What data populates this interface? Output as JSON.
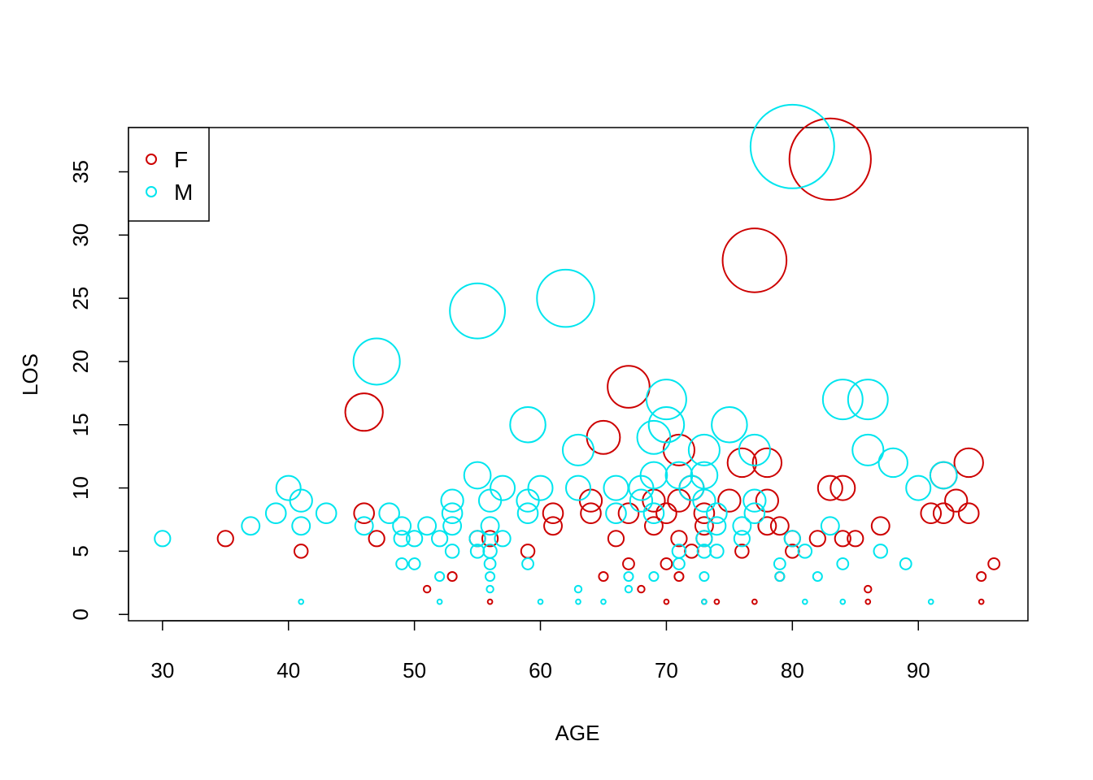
{
  "chart_data": {
    "type": "scatter",
    "title": "",
    "xlabel": "AGE",
    "ylabel": "LOS",
    "xlim": [
      27.3,
      98.7
    ],
    "ylim": [
      -0.5,
      38.5
    ],
    "x_ticks": [
      30,
      40,
      50,
      60,
      70,
      80,
      90
    ],
    "y_ticks": [
      0,
      5,
      10,
      15,
      20,
      25,
      30,
      35
    ],
    "grid": false,
    "legend_position": "top-left",
    "marker": "open-circle",
    "size_encoding": "bubble radius grows with LOS",
    "series": [
      {
        "name": "F",
        "color": "#CD0000",
        "points": [
          [
            35,
            6
          ],
          [
            41,
            5
          ],
          [
            46,
            16
          ],
          [
            46,
            8
          ],
          [
            47,
            6
          ],
          [
            51,
            2
          ],
          [
            53,
            3
          ],
          [
            55,
            6
          ],
          [
            56,
            6
          ],
          [
            56,
            1
          ],
          [
            59,
            5
          ],
          [
            61,
            7
          ],
          [
            61,
            8
          ],
          [
            64,
            8
          ],
          [
            64,
            9
          ],
          [
            65,
            3
          ],
          [
            65,
            14
          ],
          [
            66,
            6
          ],
          [
            67,
            8
          ],
          [
            67,
            4
          ],
          [
            67,
            18
          ],
          [
            68,
            2
          ],
          [
            69,
            7
          ],
          [
            69,
            9
          ],
          [
            70,
            8
          ],
          [
            70,
            4
          ],
          [
            70,
            1
          ],
          [
            71,
            9
          ],
          [
            71,
            13
          ],
          [
            71,
            6
          ],
          [
            71,
            3
          ],
          [
            72,
            10
          ],
          [
            72,
            5
          ],
          [
            73,
            8
          ],
          [
            73,
            7
          ],
          [
            73,
            6
          ],
          [
            73,
            1
          ],
          [
            74,
            1
          ],
          [
            75,
            9
          ],
          [
            76,
            12
          ],
          [
            76,
            5
          ],
          [
            77,
            28
          ],
          [
            77,
            1
          ],
          [
            78,
            12
          ],
          [
            78,
            9
          ],
          [
            78,
            7
          ],
          [
            79,
            7
          ],
          [
            79,
            3
          ],
          [
            80,
            6
          ],
          [
            80,
            5
          ],
          [
            82,
            6
          ],
          [
            83,
            10
          ],
          [
            83,
            36
          ],
          [
            84,
            10
          ],
          [
            84,
            6
          ],
          [
            85,
            6
          ],
          [
            86,
            2
          ],
          [
            86,
            1
          ],
          [
            87,
            7
          ],
          [
            91,
            8
          ],
          [
            92,
            8
          ],
          [
            92,
            11
          ],
          [
            93,
            9
          ],
          [
            94,
            12
          ],
          [
            94,
            8
          ],
          [
            95,
            3
          ],
          [
            95,
            1
          ],
          [
            96,
            4
          ]
        ]
      },
      {
        "name": "M",
        "color": "#00E5EE",
        "points": [
          [
            30,
            6
          ],
          [
            37,
            7
          ],
          [
            39,
            8
          ],
          [
            40,
            10
          ],
          [
            41,
            9
          ],
          [
            41,
            7
          ],
          [
            41,
            1
          ],
          [
            43,
            8
          ],
          [
            46,
            7
          ],
          [
            47,
            20
          ],
          [
            48,
            8
          ],
          [
            49,
            7
          ],
          [
            49,
            6
          ],
          [
            49,
            4
          ],
          [
            50,
            6
          ],
          [
            50,
            4
          ],
          [
            51,
            7
          ],
          [
            52,
            6
          ],
          [
            52,
            3
          ],
          [
            52,
            1
          ],
          [
            53,
            9
          ],
          [
            53,
            8
          ],
          [
            53,
            7
          ],
          [
            53,
            5
          ],
          [
            55,
            24
          ],
          [
            55,
            11
          ],
          [
            55,
            6
          ],
          [
            55,
            5
          ],
          [
            56,
            9
          ],
          [
            56,
            7
          ],
          [
            56,
            5
          ],
          [
            56,
            4
          ],
          [
            56,
            3
          ],
          [
            56,
            2
          ],
          [
            57,
            10
          ],
          [
            57,
            6
          ],
          [
            59,
            15
          ],
          [
            59,
            9
          ],
          [
            59,
            8
          ],
          [
            59,
            4
          ],
          [
            60,
            10
          ],
          [
            60,
            1
          ],
          [
            62,
            25
          ],
          [
            63,
            13
          ],
          [
            63,
            10
          ],
          [
            63,
            2
          ],
          [
            63,
            1
          ],
          [
            65,
            1
          ],
          [
            66,
            10
          ],
          [
            66,
            8
          ],
          [
            67,
            3
          ],
          [
            67,
            2
          ],
          [
            68,
            9
          ],
          [
            68,
            10
          ],
          [
            69,
            14
          ],
          [
            69,
            11
          ],
          [
            69,
            8
          ],
          [
            69,
            3
          ],
          [
            70,
            17
          ],
          [
            70,
            15
          ],
          [
            71,
            11
          ],
          [
            71,
            5
          ],
          [
            71,
            4
          ],
          [
            72,
            10
          ],
          [
            73,
            13
          ],
          [
            73,
            11
          ],
          [
            73,
            9
          ],
          [
            73,
            6
          ],
          [
            73,
            5
          ],
          [
            73,
            3
          ],
          [
            73,
            1
          ],
          [
            74,
            8
          ],
          [
            74,
            7
          ],
          [
            74,
            5
          ],
          [
            75,
            15
          ],
          [
            76,
            7
          ],
          [
            76,
            6
          ],
          [
            77,
            13
          ],
          [
            77,
            9
          ],
          [
            77,
            8
          ],
          [
            79,
            4
          ],
          [
            79,
            3
          ],
          [
            80,
            6
          ],
          [
            80,
            37
          ],
          [
            81,
            5
          ],
          [
            81,
            1
          ],
          [
            82,
            3
          ],
          [
            83,
            7
          ],
          [
            84,
            17
          ],
          [
            84,
            4
          ],
          [
            84,
            1
          ],
          [
            86,
            17
          ],
          [
            86,
            13
          ],
          [
            87,
            5
          ],
          [
            88,
            12
          ],
          [
            89,
            4
          ],
          [
            90,
            10
          ],
          [
            91,
            1
          ],
          [
            92,
            11
          ]
        ]
      }
    ]
  }
}
